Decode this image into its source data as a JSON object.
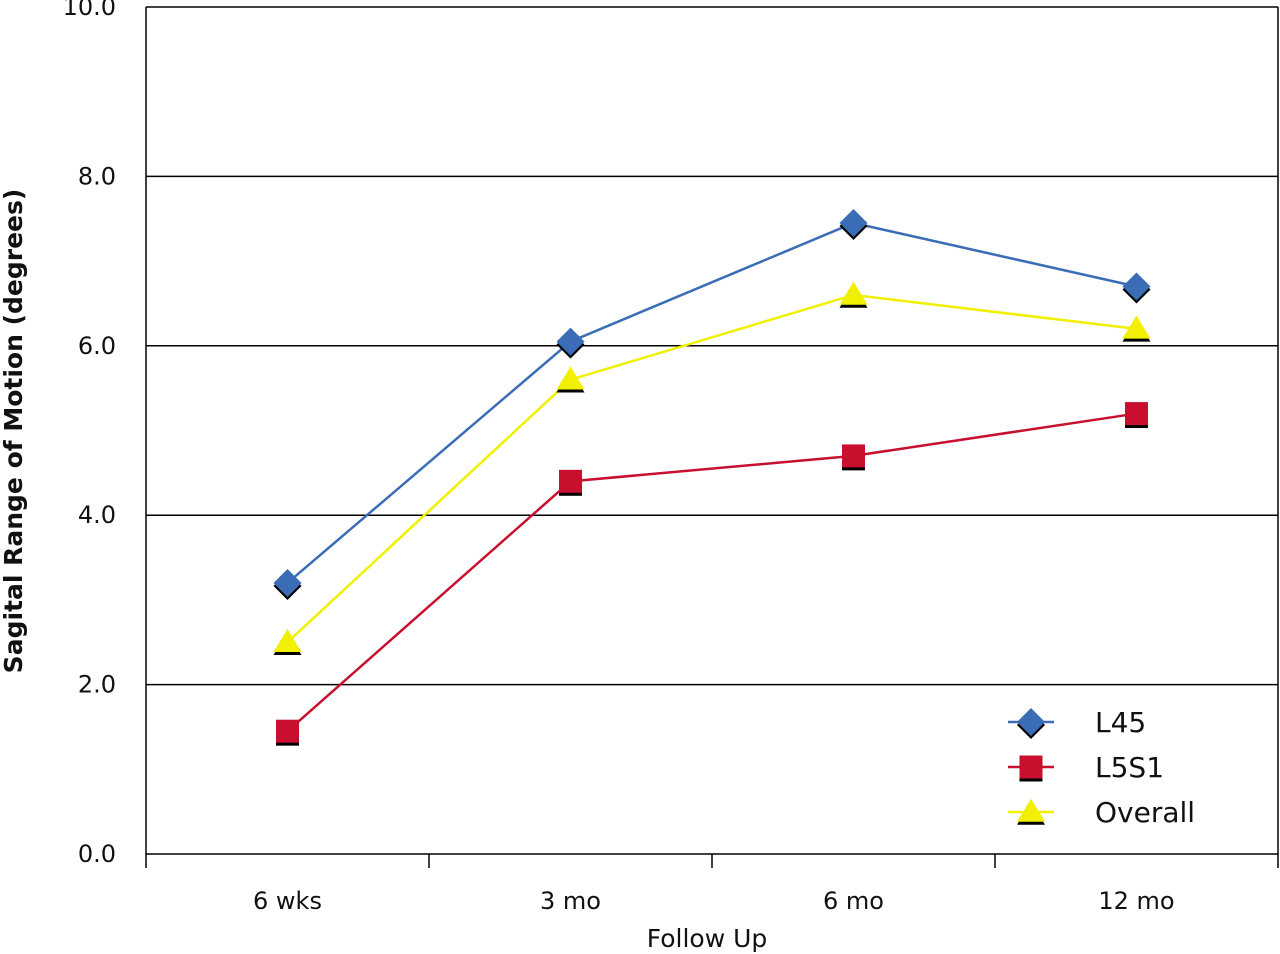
{
  "chart_data": {
    "type": "line",
    "categories": [
      "6 wks",
      "3 mo",
      "6 mo",
      "12 mo"
    ],
    "xlabel": "Follow Up",
    "ylabel": "Sagital Range of Motion (degrees)",
    "ylim": [
      0,
      10
    ],
    "yticks": [
      "0.0",
      "2.0",
      "4.0",
      "6.0",
      "8.0",
      "10.0"
    ],
    "grid": "horizontal",
    "legend_position": "bottom-right",
    "series": [
      {
        "name": "L45",
        "values": [
          3.2,
          6.05,
          7.45,
          6.7
        ],
        "color": "#3a6db5",
        "marker": "diamond"
      },
      {
        "name": "L5S1",
        "values": [
          1.45,
          4.4,
          4.7,
          5.2
        ],
        "color": "#c8102e",
        "marker": "square"
      },
      {
        "name": "Overall",
        "values": [
          2.5,
          5.6,
          6.6,
          6.2
        ],
        "color": "#f0f000",
        "marker": "triangle"
      }
    ]
  }
}
